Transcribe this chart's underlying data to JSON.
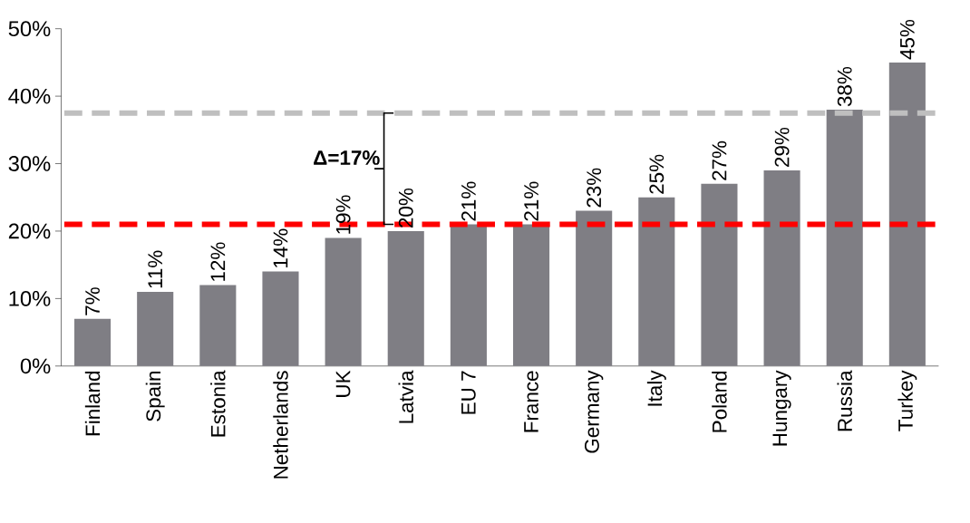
{
  "chart_data": {
    "type": "bar",
    "categories": [
      "Finland",
      "Spain",
      "Estonia",
      "Netherlands",
      "UK",
      "Latvia",
      "EU 7",
      "France",
      "Germany",
      "Italy",
      "Poland",
      "Hungary",
      "Russia",
      "Turkey"
    ],
    "values": [
      7,
      11,
      12,
      14,
      19,
      20,
      21,
      21,
      23,
      25,
      27,
      29,
      38,
      45
    ],
    "value_labels": [
      "7%",
      "11%",
      "12%",
      "14%",
      "19%",
      "20%",
      "21%",
      "21%",
      "23%",
      "25%",
      "27%",
      "29%",
      "38%",
      "45%"
    ],
    "color": "#7f7e84",
    "ylim": [
      0,
      50
    ],
    "yticks": [
      {
        "value": 0,
        "label": "0%"
      },
      {
        "value": 10,
        "label": "10%"
      },
      {
        "value": 20,
        "label": "20%"
      },
      {
        "value": 30,
        "label": "30%"
      },
      {
        "value": 40,
        "label": "40%"
      },
      {
        "value": 50,
        "label": "50%"
      }
    ],
    "ref_lines": [
      {
        "axis": "y",
        "value": 21,
        "color": "#ff0000",
        "line_style": "dashed"
      },
      {
        "axis": "y",
        "value": 37.5,
        "color": "#bfbfbf",
        "line_style": "dashed"
      }
    ],
    "annotations": [
      "Δ=17%"
    ]
  }
}
